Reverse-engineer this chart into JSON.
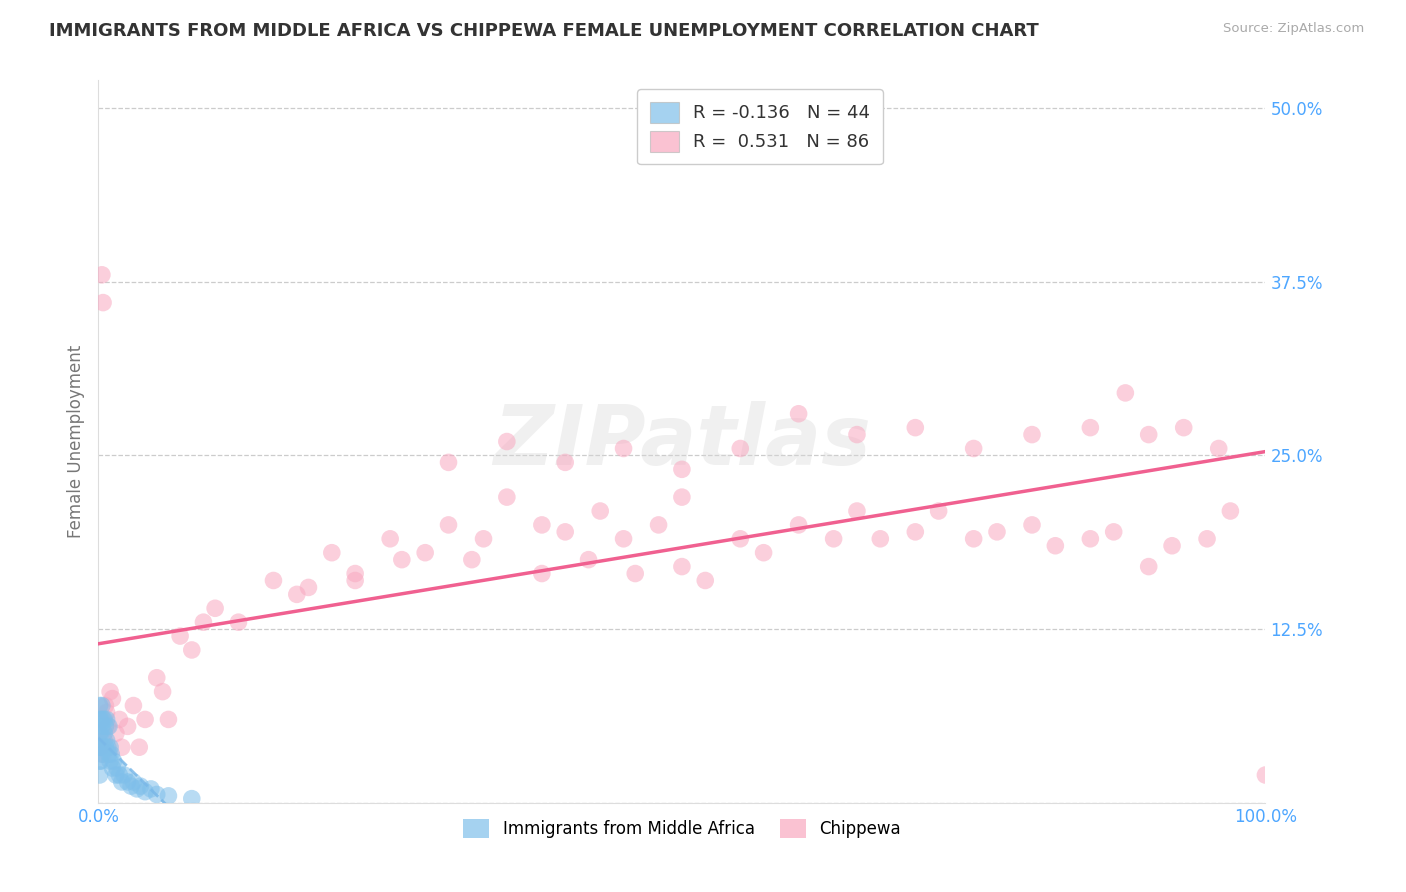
{
  "title": "IMMIGRANTS FROM MIDDLE AFRICA VS CHIPPEWA FEMALE UNEMPLOYMENT CORRELATION CHART",
  "source": "Source: ZipAtlas.com",
  "ylabel_label": "Female Unemployment",
  "legend_labels": [
    "Immigrants from Middle Africa",
    "Chippewa"
  ],
  "R_blue": -0.136,
  "N_blue": 44,
  "R_pink": 0.531,
  "N_pink": 86,
  "blue_color": "#7fbfea",
  "pink_color": "#f8a8c0",
  "blue_line_color": "#7ab8e8",
  "pink_line_color": "#f06090",
  "watermark": "ZIPatlas",
  "blue_dots_x": [
    0.001,
    0.001,
    0.001,
    0.001,
    0.001,
    0.001,
    0.002,
    0.002,
    0.002,
    0.002,
    0.003,
    0.003,
    0.003,
    0.004,
    0.004,
    0.005,
    0.005,
    0.006,
    0.006,
    0.007,
    0.007,
    0.008,
    0.009,
    0.009,
    0.01,
    0.01,
    0.011,
    0.012,
    0.013,
    0.015,
    0.016,
    0.018,
    0.02,
    0.022,
    0.025,
    0.028,
    0.03,
    0.033,
    0.036,
    0.04,
    0.045,
    0.05,
    0.06,
    0.08
  ],
  "blue_dots_y": [
    0.03,
    0.04,
    0.05,
    0.06,
    0.07,
    0.02,
    0.03,
    0.05,
    0.06,
    0.04,
    0.035,
    0.055,
    0.07,
    0.04,
    0.06,
    0.05,
    0.06,
    0.04,
    0.055,
    0.045,
    0.06,
    0.04,
    0.035,
    0.055,
    0.04,
    0.03,
    0.035,
    0.025,
    0.03,
    0.02,
    0.025,
    0.02,
    0.015,
    0.02,
    0.015,
    0.012,
    0.015,
    0.01,
    0.012,
    0.008,
    0.01,
    0.006,
    0.005,
    0.003
  ],
  "pink_dots_x": [
    0.001,
    0.002,
    0.003,
    0.004,
    0.005,
    0.006,
    0.007,
    0.008,
    0.01,
    0.012,
    0.015,
    0.018,
    0.02,
    0.025,
    0.03,
    0.035,
    0.04,
    0.05,
    0.055,
    0.06,
    0.07,
    0.08,
    0.09,
    0.1,
    0.12,
    0.15,
    0.17,
    0.2,
    0.22,
    0.25,
    0.28,
    0.3,
    0.33,
    0.35,
    0.38,
    0.4,
    0.43,
    0.45,
    0.48,
    0.5,
    0.52,
    0.55,
    0.57,
    0.6,
    0.63,
    0.65,
    0.67,
    0.7,
    0.72,
    0.75,
    0.77,
    0.8,
    0.82,
    0.85,
    0.87,
    0.9,
    0.92,
    0.95,
    0.97,
    1.0,
    0.003,
    0.004,
    0.5,
    0.55,
    0.6,
    0.65,
    0.7,
    0.75,
    0.8,
    0.85,
    0.88,
    0.9,
    0.93,
    0.96,
    0.3,
    0.35,
    0.4,
    0.45,
    0.18,
    0.22,
    0.26,
    0.32,
    0.38,
    0.42,
    0.46,
    0.5
  ],
  "pink_dots_y": [
    0.05,
    0.04,
    0.06,
    0.035,
    0.045,
    0.07,
    0.065,
    0.055,
    0.08,
    0.075,
    0.05,
    0.06,
    0.04,
    0.055,
    0.07,
    0.04,
    0.06,
    0.09,
    0.08,
    0.06,
    0.12,
    0.11,
    0.13,
    0.14,
    0.13,
    0.16,
    0.15,
    0.18,
    0.16,
    0.19,
    0.18,
    0.2,
    0.19,
    0.22,
    0.2,
    0.195,
    0.21,
    0.19,
    0.2,
    0.22,
    0.16,
    0.19,
    0.18,
    0.2,
    0.19,
    0.21,
    0.19,
    0.195,
    0.21,
    0.19,
    0.195,
    0.2,
    0.185,
    0.19,
    0.195,
    0.17,
    0.185,
    0.19,
    0.21,
    0.02,
    0.38,
    0.36,
    0.24,
    0.255,
    0.28,
    0.265,
    0.27,
    0.255,
    0.265,
    0.27,
    0.295,
    0.265,
    0.27,
    0.255,
    0.245,
    0.26,
    0.245,
    0.255,
    0.155,
    0.165,
    0.175,
    0.175,
    0.165,
    0.175,
    0.165,
    0.17
  ],
  "xlim": [
    0.0,
    1.0
  ],
  "ylim": [
    0.0,
    0.52
  ],
  "ytick_vals": [
    0.0,
    0.125,
    0.25,
    0.375,
    0.5
  ],
  "ytick_labels": [
    "",
    "12.5%",
    "25.0%",
    "37.5%",
    "50.0%"
  ],
  "xtick_vals": [
    0.0,
    1.0
  ],
  "xtick_labels": [
    "0.0%",
    "100.0%"
  ],
  "grid_color": "#cccccc",
  "background_color": "#ffffff",
  "title_color": "#333333",
  "tick_color": "#4da6ff",
  "watermark_color": "#d8d8d8"
}
